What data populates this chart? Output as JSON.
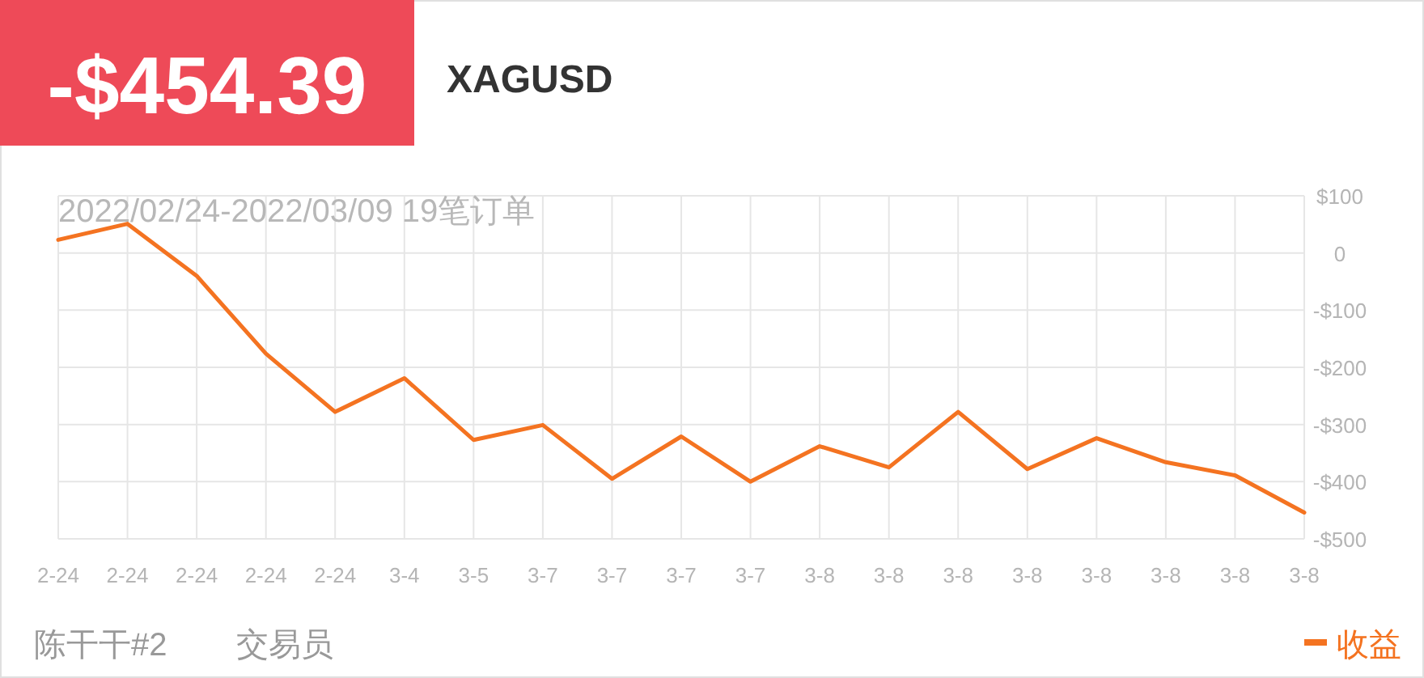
{
  "chart_data": {
    "type": "line",
    "title": "XAGUSD",
    "subtitle": "2022/02/24-2022/03/09 19笔订单",
    "annotations": [
      "-$454.39",
      "陈干干#2",
      "交易员"
    ],
    "categories": [
      "2-24",
      "2-24",
      "2-24",
      "2-24",
      "2-24",
      "3-4",
      "3-5",
      "3-7",
      "3-7",
      "3-7",
      "3-7",
      "3-8",
      "3-8",
      "3-8",
      "3-8",
      "3-8",
      "3-8",
      "3-8",
      "3-8"
    ],
    "series": [
      {
        "name": "收益",
        "color": "#f47321",
        "values": [
          23,
          51,
          -40,
          -176,
          -278,
          -219,
          -327,
          -301,
          -395,
          -321,
          -400,
          -338,
          -375,
          -278,
          -378,
          -324,
          -366,
          -389,
          -454
        ]
      }
    ],
    "ylim": [
      -500,
      100
    ],
    "yticks": [
      {
        "value": 100,
        "label": "$100"
      },
      {
        "value": 0,
        "label": "0"
      },
      {
        "value": -100,
        "label": "-$100"
      },
      {
        "value": -200,
        "label": "-$200"
      },
      {
        "value": -300,
        "label": "-$300"
      },
      {
        "value": -400,
        "label": "-$400"
      },
      {
        "value": -500,
        "label": "-$500"
      }
    ],
    "grid": true,
    "legend": "bottom right",
    "marker": "none",
    "line_style": "solid"
  }
}
